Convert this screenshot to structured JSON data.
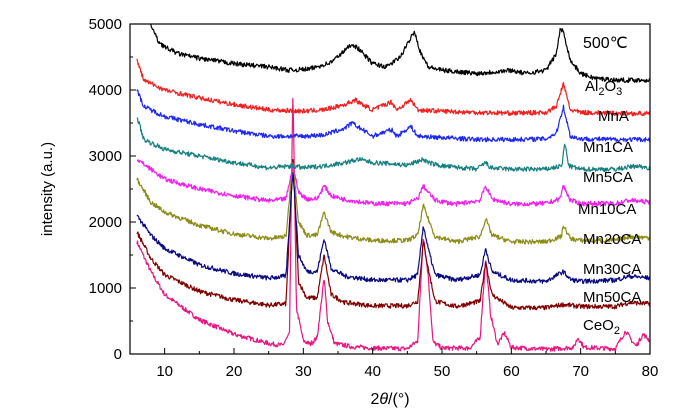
{
  "chart_data": {
    "type": "line",
    "annotation": "500℃",
    "xlabel": "2θ/(°)",
    "ylabel": "intensity (a.u.)",
    "xlim": [
      5,
      80
    ],
    "ylim": [
      0,
      5000
    ],
    "xticks": [
      10,
      20,
      30,
      40,
      50,
      60,
      70,
      80
    ],
    "yticks": [
      0,
      1000,
      2000,
      3000,
      4000,
      5000
    ],
    "grid": false,
    "legend": "labels at right end of each trace",
    "series": [
      {
        "name": "CeO2",
        "name_main": "CeO",
        "name_sub": "2",
        "color": "#e8167f",
        "x_start": 6,
        "points": [
          [
            6,
            1700
          ],
          [
            8,
            1250
          ],
          [
            10,
            900
          ],
          [
            15,
            520
          ],
          [
            20,
            300
          ],
          [
            25,
            160
          ],
          [
            27,
            130
          ],
          [
            28,
            300
          ],
          [
            28.5,
            4050
          ],
          [
            29,
            700
          ],
          [
            30,
            200
          ],
          [
            31,
            150
          ],
          [
            32,
            250
          ],
          [
            33,
            1150
          ],
          [
            33.5,
            500
          ],
          [
            34.5,
            160
          ],
          [
            37,
            110
          ],
          [
            40,
            90
          ],
          [
            45,
            80
          ],
          [
            46.5,
            200
          ],
          [
            47.3,
            1800
          ],
          [
            48,
            1200
          ],
          [
            48.7,
            180
          ],
          [
            50,
            90
          ],
          [
            54,
            90
          ],
          [
            55.5,
            250
          ],
          [
            56.3,
            1450
          ],
          [
            57,
            600
          ],
          [
            58,
            150
          ],
          [
            59,
            320
          ],
          [
            60,
            100
          ],
          [
            65,
            70
          ],
          [
            69,
            100
          ],
          [
            69.6,
            250
          ],
          [
            70.5,
            100
          ],
          [
            75,
            80
          ],
          [
            76.5,
            350
          ],
          [
            77.5,
            180
          ],
          [
            78,
            120
          ],
          [
            79,
            300
          ],
          [
            80,
            200
          ]
        ]
      },
      {
        "name": "Mn50CA",
        "color": "#800000",
        "x_start": 6,
        "points": [
          [
            6,
            1850
          ],
          [
            8,
            1450
          ],
          [
            10,
            1200
          ],
          [
            15,
            950
          ],
          [
            20,
            820
          ],
          [
            25,
            740
          ],
          [
            27.5,
            760
          ],
          [
            28.5,
            3000
          ],
          [
            29.3,
            1100
          ],
          [
            30.5,
            850
          ],
          [
            32,
            850
          ],
          [
            33,
            1500
          ],
          [
            34,
            900
          ],
          [
            36,
            780
          ],
          [
            40,
            730
          ],
          [
            45,
            730
          ],
          [
            46.5,
            800
          ],
          [
            47.3,
            1700
          ],
          [
            48,
            1300
          ],
          [
            49,
            800
          ],
          [
            52,
            720
          ],
          [
            55.5,
            800
          ],
          [
            56.3,
            1400
          ],
          [
            57.2,
            900
          ],
          [
            60,
            700
          ],
          [
            65,
            700
          ],
          [
            67.5,
            750
          ],
          [
            70,
            720
          ],
          [
            75,
            720
          ],
          [
            77,
            780
          ],
          [
            80,
            760
          ]
        ]
      },
      {
        "name": "Mn30CA",
        "color": "#0a0a80",
        "x_start": 6,
        "points": [
          [
            6,
            2100
          ],
          [
            8,
            1800
          ],
          [
            10,
            1600
          ],
          [
            15,
            1350
          ],
          [
            20,
            1220
          ],
          [
            25,
            1150
          ],
          [
            27.5,
            1180
          ],
          [
            28.5,
            2800
          ],
          [
            29.3,
            1500
          ],
          [
            30.5,
            1250
          ],
          [
            32,
            1250
          ],
          [
            33,
            1750
          ],
          [
            34,
            1300
          ],
          [
            36,
            1180
          ],
          [
            40,
            1120
          ],
          [
            45,
            1120
          ],
          [
            46.5,
            1200
          ],
          [
            47.3,
            1950
          ],
          [
            48,
            1600
          ],
          [
            49,
            1200
          ],
          [
            52,
            1120
          ],
          [
            55.5,
            1200
          ],
          [
            56.3,
            1600
          ],
          [
            57.2,
            1250
          ],
          [
            60,
            1120
          ],
          [
            65,
            1100
          ],
          [
            67.5,
            1250
          ],
          [
            68.5,
            1130
          ],
          [
            70,
            1100
          ],
          [
            75,
            1120
          ],
          [
            77,
            1180
          ],
          [
            80,
            1150
          ]
        ]
      },
      {
        "name": "Mn20CA",
        "color": "#8c8c16",
        "x_start": 6,
        "points": [
          [
            6,
            2650
          ],
          [
            8,
            2300
          ],
          [
            10,
            2150
          ],
          [
            15,
            1950
          ],
          [
            20,
            1820
          ],
          [
            25,
            1750
          ],
          [
            27.5,
            1780
          ],
          [
            28.5,
            2950
          ],
          [
            29.3,
            2000
          ],
          [
            30.5,
            1800
          ],
          [
            32,
            1800
          ],
          [
            33,
            2150
          ],
          [
            34,
            1850
          ],
          [
            36,
            1780
          ],
          [
            40,
            1720
          ],
          [
            45,
            1720
          ],
          [
            46.5,
            1800
          ],
          [
            47.3,
            2250
          ],
          [
            48,
            2050
          ],
          [
            49,
            1780
          ],
          [
            52,
            1700
          ],
          [
            55.5,
            1780
          ],
          [
            56.3,
            2050
          ],
          [
            57.2,
            1800
          ],
          [
            60,
            1700
          ],
          [
            65,
            1700
          ],
          [
            67.2,
            1780
          ],
          [
            67.5,
            1950
          ],
          [
            68.5,
            1750
          ],
          [
            70,
            1720
          ],
          [
            75,
            1720
          ],
          [
            77,
            1780
          ],
          [
            80,
            1760
          ]
        ]
      },
      {
        "name": "Mn10CA",
        "color": "#f020f0",
        "x_start": 6,
        "points": [
          [
            6,
            2950
          ],
          [
            8,
            2800
          ],
          [
            10,
            2650
          ],
          [
            15,
            2500
          ],
          [
            20,
            2400
          ],
          [
            25,
            2320
          ],
          [
            27.5,
            2350
          ],
          [
            28.5,
            2850
          ],
          [
            29.3,
            2450
          ],
          [
            30.5,
            2350
          ],
          [
            32,
            2350
          ],
          [
            33,
            2550
          ],
          [
            34,
            2400
          ],
          [
            36,
            2340
          ],
          [
            40,
            2280
          ],
          [
            45,
            2280
          ],
          [
            46.5,
            2350
          ],
          [
            47.3,
            2550
          ],
          [
            48,
            2450
          ],
          [
            49,
            2330
          ],
          [
            52,
            2270
          ],
          [
            55.5,
            2330
          ],
          [
            56.3,
            2550
          ],
          [
            57.2,
            2350
          ],
          [
            60,
            2270
          ],
          [
            65,
            2280
          ],
          [
            67,
            2350
          ],
          [
            67.5,
            2550
          ],
          [
            68.5,
            2330
          ],
          [
            70,
            2280
          ],
          [
            75,
            2280
          ],
          [
            77,
            2330
          ],
          [
            80,
            2300
          ]
        ]
      },
      {
        "name": "Mn5CA",
        "color": "#168080",
        "x_start": 6,
        "points": [
          [
            6,
            3600
          ],
          [
            7,
            3250
          ],
          [
            10,
            3100
          ],
          [
            15,
            3000
          ],
          [
            20,
            2900
          ],
          [
            25,
            2820
          ],
          [
            28.5,
            2850
          ],
          [
            30,
            2820
          ],
          [
            33,
            2850
          ],
          [
            36,
            2900
          ],
          [
            38,
            2950
          ],
          [
            40,
            2900
          ],
          [
            43,
            2880
          ],
          [
            45,
            2860
          ],
          [
            47.3,
            2950
          ],
          [
            48,
            2900
          ],
          [
            50,
            2850
          ],
          [
            55,
            2800
          ],
          [
            56.3,
            2900
          ],
          [
            57,
            2820
          ],
          [
            60,
            2800
          ],
          [
            65,
            2800
          ],
          [
            67.3,
            2850
          ],
          [
            67.7,
            3200
          ],
          [
            68.3,
            2850
          ],
          [
            70,
            2800
          ],
          [
            75,
            2800
          ],
          [
            78,
            2850
          ],
          [
            80,
            2820
          ]
        ]
      },
      {
        "name": "Mn1CA",
        "color": "#1e28f0",
        "x_start": 6,
        "points": [
          [
            6,
            4000
          ],
          [
            7,
            3750
          ],
          [
            10,
            3600
          ],
          [
            15,
            3480
          ],
          [
            20,
            3380
          ],
          [
            25,
            3300
          ],
          [
            30,
            3300
          ],
          [
            33,
            3320
          ],
          [
            36,
            3420
          ],
          [
            37,
            3500
          ],
          [
            38.5,
            3400
          ],
          [
            40,
            3300
          ],
          [
            42.7,
            3400
          ],
          [
            43.5,
            3300
          ],
          [
            45.5,
            3450
          ],
          [
            46.5,
            3300
          ],
          [
            50,
            3280
          ],
          [
            55,
            3250
          ],
          [
            60,
            3250
          ],
          [
            65,
            3260
          ],
          [
            66.5,
            3350
          ],
          [
            67.5,
            3750
          ],
          [
            68.5,
            3300
          ],
          [
            70,
            3260
          ],
          [
            75,
            3250
          ],
          [
            80,
            3250
          ]
        ]
      },
      {
        "name": "MnA",
        "color": "#f02020",
        "x_start": 6,
        "points": [
          [
            6,
            4450
          ],
          [
            7,
            4150
          ],
          [
            10,
            4000
          ],
          [
            15,
            3880
          ],
          [
            20,
            3780
          ],
          [
            25,
            3700
          ],
          [
            30,
            3680
          ],
          [
            33,
            3700
          ],
          [
            36,
            3780
          ],
          [
            37.5,
            3850
          ],
          [
            38.5,
            3780
          ],
          [
            40,
            3700
          ],
          [
            42.7,
            3820
          ],
          [
            43.5,
            3700
          ],
          [
            45.5,
            3850
          ],
          [
            46.5,
            3700
          ],
          [
            50,
            3680
          ],
          [
            55,
            3660
          ],
          [
            60,
            3650
          ],
          [
            65,
            3660
          ],
          [
            66.5,
            3750
          ],
          [
            67.5,
            4100
          ],
          [
            68.5,
            3700
          ],
          [
            70,
            3660
          ],
          [
            75,
            3650
          ],
          [
            80,
            3640
          ]
        ]
      },
      {
        "name": "Al2O3",
        "name_main": "Al",
        "name_sub": "2",
        "name_main2": "O",
        "name_sub2": "3",
        "color": "#000000",
        "x_start": 8,
        "points": [
          [
            8,
            5000
          ],
          [
            9,
            4750
          ],
          [
            10,
            4650
          ],
          [
            12,
            4550
          ],
          [
            15,
            4480
          ],
          [
            20,
            4400
          ],
          [
            22,
            4380
          ],
          [
            25,
            4350
          ],
          [
            28,
            4300
          ],
          [
            31,
            4320
          ],
          [
            34,
            4420
          ],
          [
            36,
            4600
          ],
          [
            37,
            4700
          ],
          [
            38,
            4620
          ],
          [
            40,
            4400
          ],
          [
            42,
            4350
          ],
          [
            44,
            4500
          ],
          [
            45.3,
            4750
          ],
          [
            46,
            4900
          ],
          [
            46.8,
            4600
          ],
          [
            48,
            4350
          ],
          [
            50,
            4300
          ],
          [
            55,
            4250
          ],
          [
            60,
            4300
          ],
          [
            62,
            4250
          ],
          [
            65,
            4300
          ],
          [
            66.5,
            4550
          ],
          [
            67,
            4900
          ],
          [
            67.5,
            4900
          ],
          [
            68.5,
            4450
          ],
          [
            70,
            4250
          ],
          [
            72,
            4180
          ],
          [
            75,
            4150
          ],
          [
            80,
            4150
          ]
        ]
      }
    ]
  }
}
